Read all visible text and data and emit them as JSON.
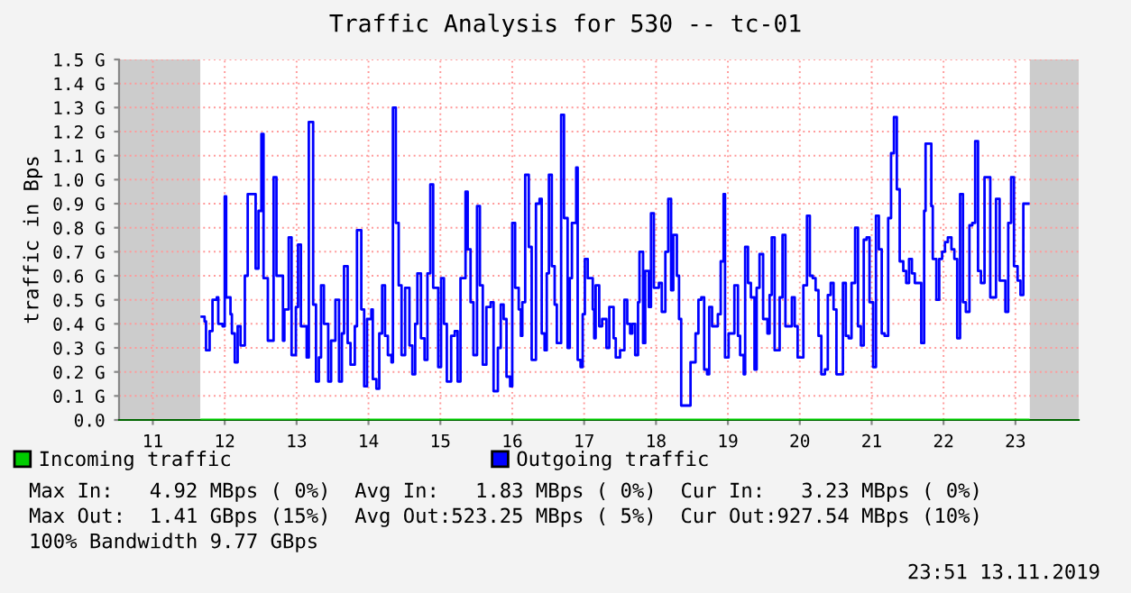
{
  "chart_data": {
    "type": "step",
    "title": "Traffic Analysis for 530 -- tc-01",
    "ylabel": "traffic in Bps",
    "xlim": [
      10.53,
      23.88
    ],
    "ylim": [
      0,
      1.5
    ],
    "xticks": [
      11,
      12,
      13,
      14,
      15,
      16,
      17,
      18,
      19,
      20,
      21,
      22,
      23
    ],
    "yticks": [
      {
        "value": 0,
        "label": "0.0"
      },
      {
        "value": 0.1,
        "label": "0.1 G"
      },
      {
        "value": 0.2,
        "label": "0.2 G"
      },
      {
        "value": 0.3,
        "label": "0.3 G"
      },
      {
        "value": 0.4,
        "label": "0.4 G"
      },
      {
        "value": 0.5,
        "label": "0.5 G"
      },
      {
        "value": 0.6,
        "label": "0.6 G"
      },
      {
        "value": 0.7,
        "label": "0.7 G"
      },
      {
        "value": 0.8,
        "label": "0.8 G"
      },
      {
        "value": 0.9,
        "label": "0.9 G"
      },
      {
        "value": 1.0,
        "label": "1.0 G"
      },
      {
        "value": 1.1,
        "label": "1.1 G"
      },
      {
        "value": 1.2,
        "label": "1.2 G"
      },
      {
        "value": 1.3,
        "label": "1.3 G"
      },
      {
        "value": 1.4,
        "label": "1.4 G"
      },
      {
        "value": 1.5,
        "label": "1.5 G"
      }
    ],
    "grid": true,
    "legend": "bottom",
    "bands": [
      {
        "axis": "x",
        "from": 10.53,
        "to": 11.66,
        "color": "#cccccc"
      },
      {
        "axis": "x",
        "from": 23.2,
        "to": 23.88,
        "color": "#cccccc"
      }
    ],
    "series": [
      {
        "name": "Incoming traffic",
        "color": "#00cc00",
        "x": [
          11.68,
          23.18
        ],
        "values": [
          0,
          0
        ]
      },
      {
        "name": "Outgoing traffic",
        "color": "#0000ff",
        "x": [
          11.68,
          11.72,
          11.74,
          11.79,
          11.83,
          11.89,
          11.91,
          11.97,
          12.0,
          12.02,
          12.08,
          12.1,
          12.14,
          12.18,
          12.22,
          12.28,
          12.32,
          12.41,
          12.43,
          12.47,
          12.51,
          12.54,
          12.6,
          12.68,
          12.72,
          12.81,
          12.83,
          12.89,
          12.93,
          12.99,
          13.02,
          13.06,
          13.14,
          13.17,
          13.23,
          13.27,
          13.31,
          13.34,
          13.38,
          13.44,
          13.48,
          13.54,
          13.59,
          13.63,
          13.66,
          13.71,
          13.75,
          13.81,
          13.84,
          13.9,
          13.94,
          13.98,
          14.04,
          14.06,
          14.11,
          14.15,
          14.19,
          14.23,
          14.27,
          14.32,
          14.34,
          14.38,
          14.42,
          14.46,
          14.51,
          14.57,
          14.61,
          14.65,
          14.68,
          14.73,
          14.78,
          14.82,
          14.86,
          14.9,
          14.97,
          15.01,
          15.05,
          15.09,
          15.15,
          15.2,
          15.24,
          15.28,
          15.35,
          15.38,
          15.42,
          15.46,
          15.51,
          15.55,
          15.59,
          15.64,
          15.7,
          15.74,
          15.8,
          15.84,
          15.88,
          15.92,
          15.97,
          16.0,
          16.04,
          16.09,
          16.12,
          16.14,
          16.18,
          16.23,
          16.27,
          16.33,
          16.38,
          16.41,
          16.45,
          16.48,
          16.51,
          16.55,
          16.59,
          16.62,
          16.68,
          16.72,
          16.77,
          16.8,
          16.83,
          16.89,
          16.91,
          16.95,
          16.98,
          17.01,
          17.05,
          17.12,
          17.14,
          17.16,
          17.21,
          17.25,
          17.31,
          17.35,
          17.41,
          17.44,
          17.5,
          17.56,
          17.6,
          17.64,
          17.67,
          17.71,
          17.75,
          17.77,
          17.82,
          17.85,
          17.9,
          17.93,
          17.97,
          18.04,
          18.08,
          18.13,
          18.17,
          18.21,
          18.24,
          18.29,
          18.32,
          18.35,
          18.44,
          18.48,
          18.52,
          18.55,
          18.59,
          18.63,
          18.67,
          18.71,
          18.74,
          18.78,
          18.84,
          18.86,
          18.9,
          18.94,
          18.96,
          19.01,
          19.06,
          19.09,
          19.14,
          19.17,
          19.22,
          19.24,
          19.28,
          19.32,
          19.37,
          19.4,
          19.44,
          19.49,
          19.55,
          19.58,
          19.61,
          19.65,
          19.72,
          19.76,
          19.8,
          19.86,
          19.89,
          19.93,
          19.97,
          20.01,
          20.05,
          20.1,
          20.14,
          20.18,
          20.22,
          20.26,
          20.3,
          20.35,
          20.39,
          20.43,
          20.47,
          20.51,
          20.56,
          20.6,
          20.64,
          20.68,
          20.72,
          20.77,
          20.81,
          20.85,
          20.89,
          20.93,
          20.97,
          21.02,
          21.06,
          21.1,
          21.14,
          21.18,
          21.23,
          21.27,
          21.31,
          21.35,
          21.39,
          21.44,
          21.48,
          21.52,
          21.56,
          21.6,
          21.64,
          21.69,
          21.73,
          21.75,
          21.8,
          21.83,
          21.85,
          21.9,
          21.94,
          21.98,
          22.02,
          22.06,
          22.11,
          22.15,
          22.19,
          22.23,
          22.27,
          22.31,
          22.36,
          22.4,
          22.44,
          22.48,
          22.52,
          22.57,
          22.61,
          22.65,
          22.69,
          22.73,
          22.78,
          22.82,
          22.86,
          22.9,
          22.94,
          22.98,
          23.03,
          23.07,
          23.11,
          23.18
        ],
        "values": [
          0.43,
          0.41,
          0.29,
          0.37,
          0.5,
          0.51,
          0.4,
          0.39,
          0.93,
          0.51,
          0.44,
          0.36,
          0.24,
          0.39,
          0.31,
          0.6,
          0.94,
          0.94,
          0.63,
          0.87,
          1.19,
          0.59,
          0.33,
          1.01,
          0.6,
          0.33,
          0.46,
          0.76,
          0.27,
          0.47,
          0.73,
          0.39,
          0.26,
          1.24,
          0.48,
          0.16,
          0.26,
          0.56,
          0.4,
          0.16,
          0.33,
          0.5,
          0.16,
          0.36,
          0.64,
          0.32,
          0.23,
          0.39,
          0.79,
          0.46,
          0.14,
          0.42,
          0.46,
          0.17,
          0.13,
          0.36,
          0.56,
          0.35,
          0.27,
          0.24,
          1.3,
          0.82,
          0.56,
          0.27,
          0.55,
          0.31,
          0.19,
          0.4,
          0.61,
          0.34,
          0.25,
          0.61,
          0.98,
          0.55,
          0.22,
          0.59,
          0.4,
          0.16,
          0.35,
          0.37,
          0.16,
          0.59,
          0.95,
          0.71,
          0.49,
          0.27,
          0.89,
          0.56,
          0.23,
          0.47,
          0.49,
          0.12,
          0.3,
          0.48,
          0.42,
          0.18,
          0.14,
          0.82,
          0.55,
          0.46,
          0.35,
          0.49,
          1.02,
          0.72,
          0.25,
          0.9,
          0.92,
          0.36,
          0.29,
          0.61,
          1.02,
          0.64,
          0.48,
          0.32,
          1.27,
          0.84,
          0.3,
          0.59,
          0.82,
          1.05,
          0.25,
          0.22,
          0.44,
          0.67,
          0.59,
          0.46,
          0.34,
          0.56,
          0.39,
          0.42,
          0.3,
          0.47,
          0.34,
          0.26,
          0.29,
          0.5,
          0.4,
          0.36,
          0.4,
          0.27,
          0.49,
          0.7,
          0.32,
          0.62,
          0.47,
          0.86,
          0.55,
          0.57,
          0.45,
          0.7,
          0.92,
          0.54,
          0.77,
          0.6,
          0.42,
          0.06,
          0.06,
          0.24,
          0.24,
          0.36,
          0.5,
          0.51,
          0.21,
          0.19,
          0.47,
          0.39,
          0.39,
          0.44,
          0.66,
          0.94,
          0.26,
          0.36,
          0.36,
          0.56,
          0.35,
          0.27,
          0.19,
          0.72,
          0.57,
          0.51,
          0.21,
          0.55,
          0.69,
          0.42,
          0.36,
          0.52,
          0.76,
          0.29,
          0.51,
          0.77,
          0.39,
          0.39,
          0.51,
          0.39,
          0.26,
          0.26,
          0.56,
          0.85,
          0.6,
          0.59,
          0.54,
          0.35,
          0.19,
          0.21,
          0.52,
          0.57,
          0.46,
          0.19,
          0.19,
          0.57,
          0.35,
          0.34,
          0.57,
          0.8,
          0.39,
          0.31,
          0.75,
          0.76,
          0.49,
          0.22,
          0.85,
          0.71,
          0.36,
          0.35,
          0.84,
          1.11,
          1.26,
          0.96,
          0.66,
          0.62,
          0.57,
          0.67,
          0.61,
          0.57,
          0.57,
          0.32,
          0.87,
          1.15,
          1.15,
          0.89,
          0.67,
          0.5,
          0.67,
          0.7,
          0.74,
          0.76,
          0.71,
          0.67,
          0.34,
          0.94,
          0.49,
          0.45,
          0.81,
          0.82,
          1.16,
          0.62,
          0.57,
          1.01,
          1.01,
          0.51,
          0.51,
          0.92,
          0.58,
          0.58,
          0.45,
          0.82,
          1.01,
          0.64,
          0.58,
          0.52,
          0.9,
          0.9
        ]
      }
    ],
    "annotations": [
      "Max In:   4.92 MBps ( 0%)  Avg In:   1.83 MBps ( 0%)  Cur In:   3.23 MBps ( 0%)",
      "Max Out:  1.41 GBps (15%)  Avg Out:523.25 MBps ( 5%)  Cur Out:927.54 MBps (10%)",
      "100% Bandwidth 9.77 GBps",
      "23:51 13.11.2019"
    ]
  }
}
